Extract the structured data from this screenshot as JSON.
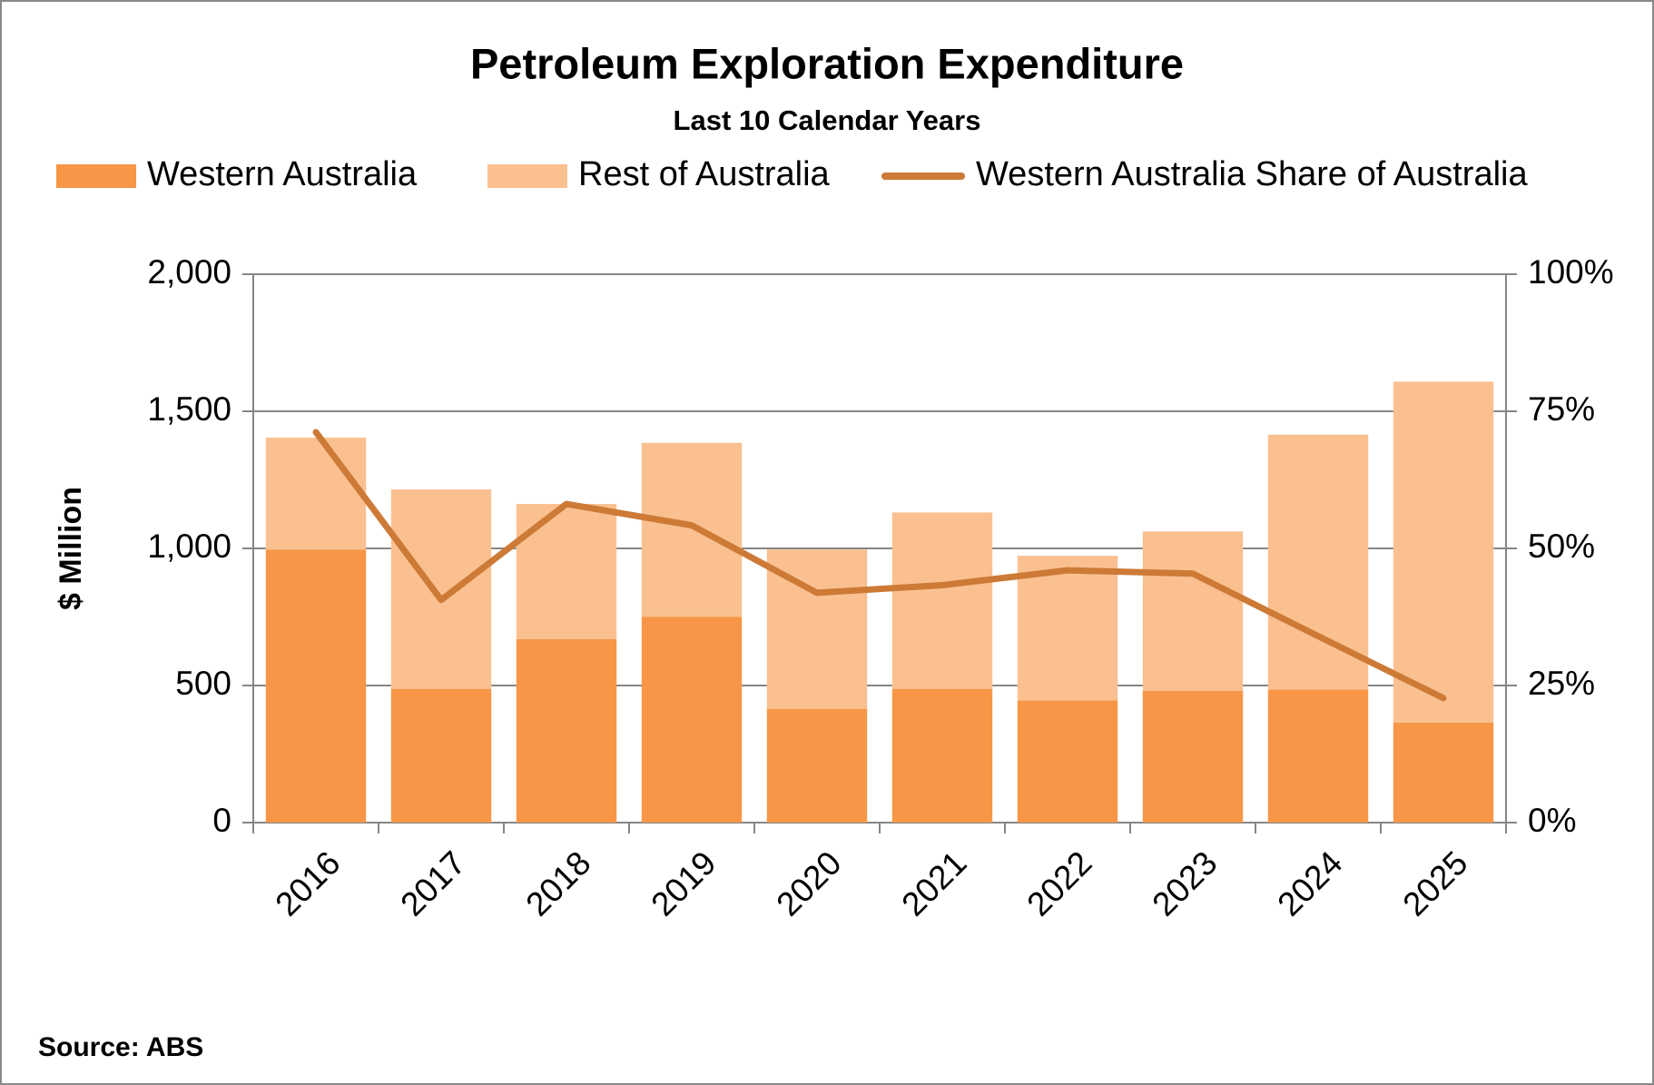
{
  "chart_data": {
    "type": "bar",
    "stacked": true,
    "title": "Petroleum Exploration Expenditure",
    "subtitle": "Last 10 Calendar Years",
    "y_label": "$ Million",
    "source": "Source: ABS",
    "categories": [
      "2016",
      "2017",
      "2018",
      "2019",
      "2020",
      "2021",
      "2022",
      "2023",
      "2024",
      "2025"
    ],
    "series": [
      {
        "name": "Western Australia",
        "color": "#f79646",
        "values": [
          995,
          488,
          669,
          750,
          415,
          488,
          446,
          481,
          485,
          365
        ]
      },
      {
        "name": "Rest of Australia",
        "color": "#fac090",
        "values": [
          409,
          727,
          493,
          635,
          581,
          643,
          527,
          581,
          930,
          1243
        ]
      },
      {
        "name": "Western Australia Share of Australia",
        "color": "#cc7a36",
        "type": "line",
        "axis": "y2",
        "values": [
          71.2,
          40.6,
          58.1,
          54.2,
          41.9,
          43.3,
          46.0,
          45.4,
          34.0,
          22.7
        ]
      }
    ],
    "ylim": [
      0,
      2000
    ],
    "yticks": [
      0,
      500,
      {
        "value": 1000,
        "label": "1,000"
      },
      {
        "value": 1500,
        "label": "1,500"
      },
      {
        "value": 2000,
        "label": "2,000"
      }
    ],
    "y2lim": [
      0,
      100
    ],
    "y2ticks": [
      {
        "value": 0,
        "label": "0%"
      },
      {
        "value": 25,
        "label": "25%"
      },
      {
        "value": 50,
        "label": "50%"
      },
      {
        "value": 75,
        "label": "75%"
      },
      {
        "value": 100,
        "label": "100%"
      }
    ],
    "grid": true,
    "legend": "top"
  }
}
